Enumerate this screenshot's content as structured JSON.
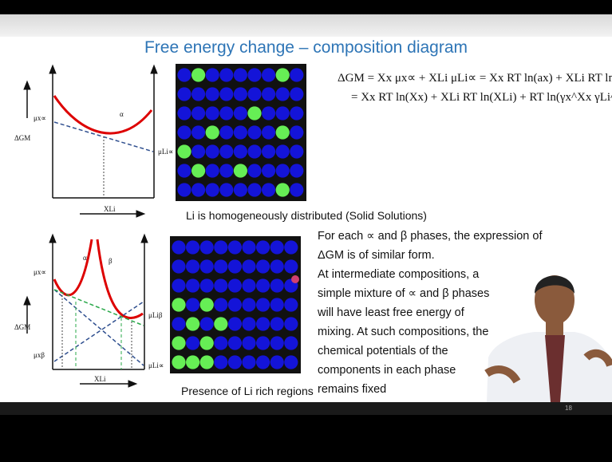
{
  "title": "Free energy change – composition diagram",
  "equations": [
    "ΔGM = Xx μx∝ + XLi μLi∝ = Xx RT ln(ax) + XLi RT ln(aLi)",
    "= Xx RT ln(Xx) + XLi RT ln(XLi) + RT ln(γx^Xx γLi^XLi)"
  ],
  "diagram_top": {
    "labels": {
      "mu_x": "μx∝",
      "phase": "α",
      "mu_li": "μLi∝",
      "y_axis": "ΔGM",
      "x_axis": "XLi"
    },
    "caption": "Li is homogeneously distributed (Solid Solutions)"
  },
  "diagram_bottom": {
    "labels": {
      "alpha": "α",
      "beta": "β",
      "mu_x_alpha": "μx∝",
      "mu_li_beta": "μLiβ",
      "y_axis": "ΔGM",
      "mu_x_beta": "μxβ",
      "mu_li_alpha": "μLi∝",
      "x_axis": "XLi"
    },
    "caption": "Presence of Li rich regions"
  },
  "paragraph": [
    "For each ∝ and β phases, the expression of",
    "ΔGM is of similar form.",
    "At intermediate compositions, a",
    "simple mixture of ∝ and β phases",
    "will have least free energy of",
    "mixing. At such compositions, the",
    "chemical potentials of the",
    "components in each phase",
    "remains fixed"
  ],
  "page_number": "18"
}
